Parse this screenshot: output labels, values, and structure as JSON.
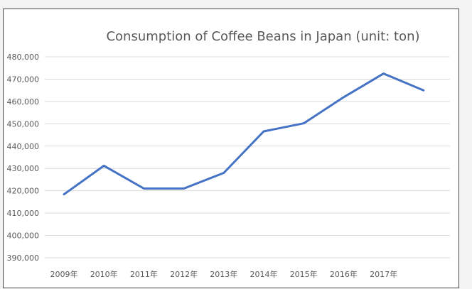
{
  "chart_data": {
    "type": "line",
    "title": "Consumption of Coffee Beans in Japan (unit: ton)",
    "xlabel": "",
    "ylabel": "",
    "categories": [
      "2009年",
      "2010年",
      "2011年",
      "2012年",
      "2013年",
      "2014年",
      "2015年",
      "2016年",
      "2017年",
      ""
    ],
    "series": [
      {
        "values": [
          418400,
          431200,
          421000,
          421000,
          428000,
          446600,
          450200,
          461900,
          472500,
          465000
        ],
        "color": "#4472c4"
      }
    ],
    "ylim": [
      390000,
      480000
    ],
    "yticks": [
      {
        "value": 390000,
        "label": "390,000"
      },
      {
        "value": 400000,
        "label": "400,000"
      },
      {
        "value": 410000,
        "label": "410,000"
      },
      {
        "value": 420000,
        "label": "420,000"
      },
      {
        "value": 430000,
        "label": "430,000"
      },
      {
        "value": 440000,
        "label": "440,000"
      },
      {
        "value": 450000,
        "label": "450,000"
      },
      {
        "value": 460000,
        "label": "460,000"
      },
      {
        "value": 470000,
        "label": "470,000"
      },
      {
        "value": 480000,
        "label": "480,000"
      }
    ],
    "grid": true,
    "legend": "none"
  }
}
